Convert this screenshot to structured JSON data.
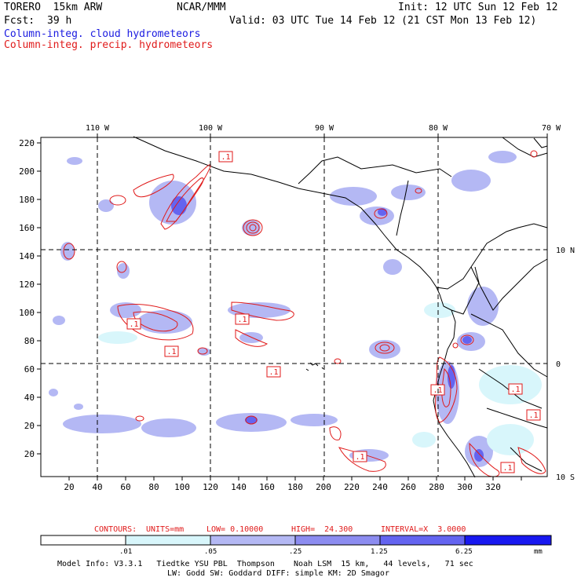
{
  "header": {
    "model": "TORERO  15km ARW",
    "org": "NCAR/MMM",
    "init": "Init: 12 UTC Sun 12 Feb 12",
    "fcst_label": "Fcst:",
    "fcst_value": "39 h",
    "valid": "Valid: 03 UTC Tue 14 Feb 12 (21 CST Mon 13 Feb 12)",
    "field1": "Column-integ. cloud hydrometeors",
    "field2": "Column-integ. precip. hydrometeors"
  },
  "colors": {
    "cloud": "#1a1ae0",
    "precip": "#e01a1a",
    "scale": [
      "#ffffff",
      "#d8f6fb",
      "#b4b8f4",
      "#8c8cf0",
      "#6464f0",
      "#3c3cf0",
      "#1818f0"
    ]
  },
  "map": {
    "top_lon_labels": [
      "110 W",
      "100 W",
      "90 W",
      "80 W",
      "70 W"
    ],
    "right_lat_labels": [
      "10 N",
      "0",
      "10 S"
    ],
    "y_ticks": [
      "220",
      "200",
      "180",
      "160",
      "140",
      "120",
      "100",
      "80",
      "60",
      "40",
      "20"
    ],
    "x_ticks": [
      "20",
      "40",
      "60",
      "80",
      "100",
      "120",
      "140",
      "160",
      "180",
      "200",
      "220",
      "240",
      "260",
      "280",
      "300",
      "320"
    ],
    "contour_labels": [
      ".1",
      ".1",
      ".1",
      ".1",
      ".1",
      ".1",
      ".1",
      ".1",
      ".1",
      ".1"
    ]
  },
  "contour_info": {
    "label": "CONTOURS:",
    "units": "UNITS=mm",
    "low": "LOW= 0.10000",
    "high": "HIGH=  24.300",
    "interval": "INTERVAL=X  3.0000"
  },
  "colorbar": {
    "labels": [
      ".01",
      ".05",
      ".25",
      "1.25",
      "6.25"
    ],
    "units": "mm"
  },
  "footer": {
    "line1": "Model Info: V3.3.1   Tiedtke YSU PBL  Thompson    Noah LSM  15 km,   44 levels,   71 sec",
    "line2": "LW: Godd SW: Goddard DIFF: simple KM: 2D Smagor"
  }
}
